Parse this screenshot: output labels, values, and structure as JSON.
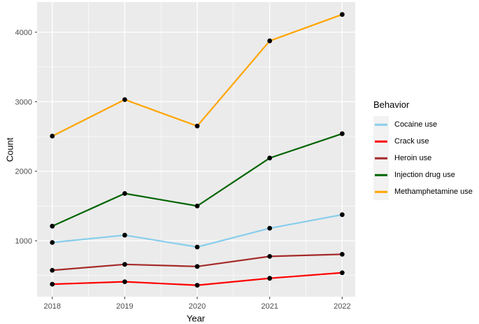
{
  "chart_data": {
    "type": "line",
    "title": "",
    "xlabel": "Year",
    "ylabel": "Count",
    "legend_title": "Behavior",
    "legend_position": "right",
    "grid": "major+minor",
    "x": [
      2018,
      2019,
      2020,
      2021,
      2022
    ],
    "x_ticks": [
      "2018",
      "2019",
      "2020",
      "2021",
      "2022"
    ],
    "y_ticks": [
      1000,
      2000,
      3000,
      4000
    ],
    "y_minor_ticks": [
      500,
      1500,
      2500,
      3500
    ],
    "x_minor_ticks": [
      2018.5,
      2019.5,
      2020.5,
      2021.5
    ],
    "xlim": [
      2017.79,
      2022.18
    ],
    "ylim": [
      195,
      4433
    ],
    "series": [
      {
        "name": "Cocaine use",
        "color": "#87CEEB",
        "values": [
          975,
          1080,
          910,
          1180,
          1375
        ]
      },
      {
        "name": "Crack use",
        "color": "#FF0000",
        "values": [
          375,
          410,
          360,
          460,
          540
        ]
      },
      {
        "name": "Heroin use",
        "color": "#A52A2A",
        "values": [
          575,
          660,
          630,
          775,
          805
        ]
      },
      {
        "name": "Injection drug use",
        "color": "#006400",
        "values": [
          1210,
          1680,
          1500,
          2190,
          2540
        ]
      },
      {
        "name": "Methamphetamine use",
        "color": "#FFA500",
        "values": [
          2505,
          3030,
          2650,
          3875,
          4255
        ]
      }
    ],
    "colors": {
      "panel_bg": "#EBEBEB",
      "grid": "#FFFFFF",
      "point": "#000000",
      "tick_mark": "#333333",
      "tick_label": "#4D4D4D",
      "axis_title": "#000000",
      "legend_key_bg": "#F2F2F2"
    }
  }
}
